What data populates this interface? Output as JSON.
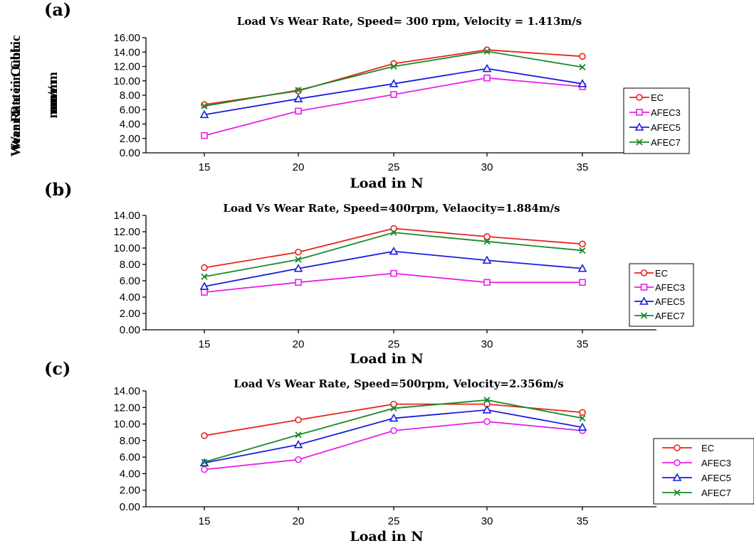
{
  "chart_data": [
    {
      "type": "line",
      "panel": "(a)",
      "title": "Load Vs Wear Rate, Speed= 300 rpm, Velocity = 1.413m/s",
      "xlabel": "Load in N",
      "ylabel": [
        "Wear Rate in Cubic",
        "mm/ m"
      ],
      "categories": [
        "15",
        "20",
        "25",
        "30",
        "35"
      ],
      "ylim": [
        0,
        16
      ],
      "yticks": [
        "0.00",
        "2.00",
        "4.00",
        "6.00",
        "8.00",
        "10.00",
        "12.00",
        "14.00",
        "16.00"
      ],
      "legend_position": "right",
      "series": [
        {
          "name": "EC",
          "values": [
            6.7,
            8.6,
            12.4,
            14.3,
            13.4
          ],
          "color": "#e8221c",
          "marker": "circle"
        },
        {
          "name": "AFEC3",
          "values": [
            2.4,
            5.8,
            8.1,
            10.4,
            9.2
          ],
          "color": "#ea1ee8",
          "marker": "square"
        },
        {
          "name": "AFEC5",
          "values": [
            5.3,
            7.5,
            9.6,
            11.7,
            9.6
          ],
          "color": "#1b1ce0",
          "marker": "triangle"
        },
        {
          "name": "AFEC7",
          "values": [
            6.5,
            8.7,
            12.0,
            14.1,
            11.9
          ],
          "color": "#1a8a28",
          "marker": "x"
        }
      ]
    },
    {
      "type": "line",
      "panel": "(b)",
      "title": "Load Vs Wear Rate, Speed=400rpm, Velaocity=1.884m/s",
      "xlabel": "Load in N",
      "ylabel": [
        "Wear Rate in Cubic",
        "mm/m"
      ],
      "categories": [
        "15",
        "20",
        "25",
        "30",
        "35"
      ],
      "ylim": [
        0,
        14
      ],
      "yticks": [
        "0.00",
        "2.00",
        "4.00",
        "6.00",
        "8.00",
        "10.00",
        "12.00",
        "14.00"
      ],
      "legend_position": "right",
      "series": [
        {
          "name": "EC",
          "values": [
            7.6,
            9.5,
            12.4,
            11.4,
            10.5
          ],
          "color": "#e8221c",
          "marker": "circle"
        },
        {
          "name": "AFEC3",
          "values": [
            4.6,
            5.8,
            6.9,
            5.8,
            5.8
          ],
          "color": "#ea1ee8",
          "marker": "square"
        },
        {
          "name": "AFEC5",
          "values": [
            5.3,
            7.5,
            9.6,
            8.5,
            7.5
          ],
          "color": "#1b1ce0",
          "marker": "triangle"
        },
        {
          "name": "AFEC7",
          "values": [
            6.5,
            8.6,
            11.9,
            10.8,
            9.7
          ],
          "color": "#1a8a28",
          "marker": "x"
        }
      ]
    },
    {
      "type": "line",
      "panel": "(c)",
      "title": "Load Vs Wear Rate, Speed=500rpm, Velocity=2.356m/s",
      "xlabel": "Load in N",
      "ylabel": [
        "Wear Rate in Cubic",
        "mm/m"
      ],
      "categories": [
        "15",
        "20",
        "25",
        "30",
        "35"
      ],
      "ylim": [
        0,
        14
      ],
      "yticks": [
        "0.00",
        "2.00",
        "4.00",
        "6.00",
        "8.00",
        "10.00",
        "12.00",
        "14.00"
      ],
      "legend_position": "right",
      "series": [
        {
          "name": "EC",
          "values": [
            8.6,
            10.5,
            12.4,
            12.4,
            11.4
          ],
          "color": "#e8221c",
          "marker": "circle"
        },
        {
          "name": "AFEC3",
          "values": [
            4.5,
            5.7,
            9.2,
            10.3,
            9.2
          ],
          "color": "#ea1ee8",
          "marker": "circle"
        },
        {
          "name": "AFEC5",
          "values": [
            5.3,
            7.5,
            10.7,
            11.7,
            9.6
          ],
          "color": "#1b1ce0",
          "marker": "triangle"
        },
        {
          "name": "AFEC7",
          "values": [
            5.4,
            8.7,
            11.9,
            12.9,
            10.7
          ],
          "color": "#1a8a28",
          "marker": "x"
        }
      ]
    }
  ]
}
